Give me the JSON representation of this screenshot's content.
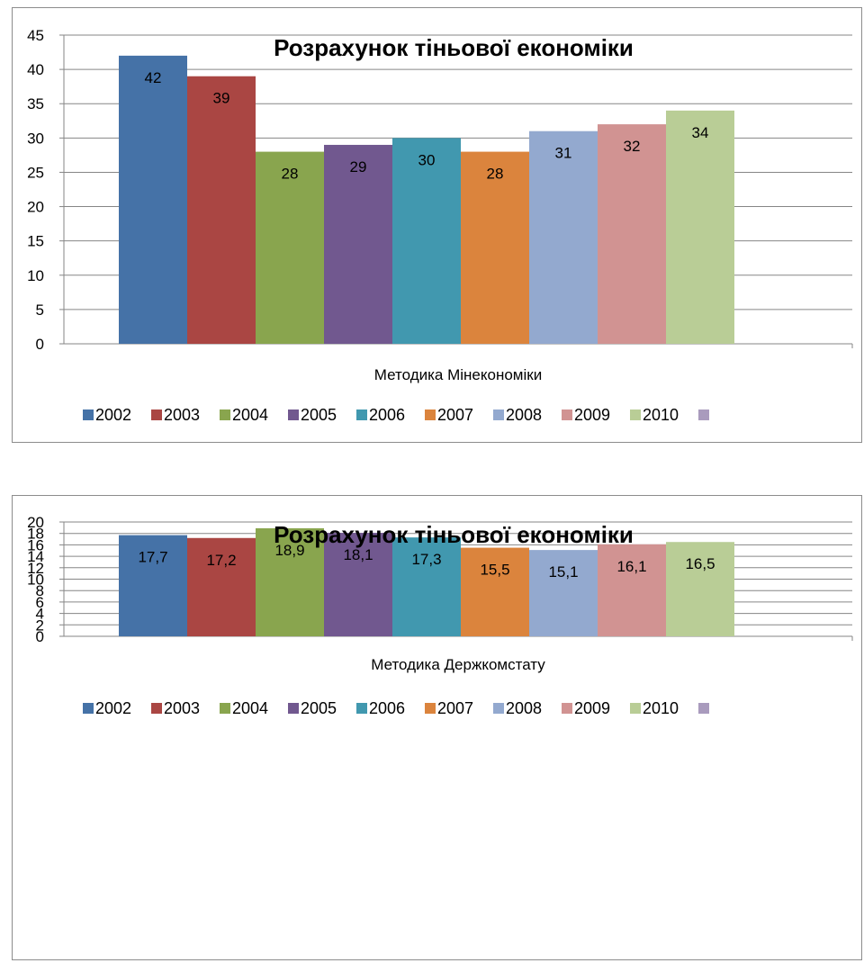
{
  "chart_data": [
    {
      "type": "bar",
      "title": "Розрахунок тіньової економіки",
      "category": "Методика Мінекономіки",
      "xlabel": "",
      "ylabel": "",
      "ylim": [
        0,
        45
      ],
      "ytick_step": 5,
      "yticks": [
        "0",
        "5",
        "10",
        "15",
        "20",
        "25",
        "30",
        "35",
        "40",
        "45"
      ],
      "grid": true,
      "legend_position": "bottom",
      "series": [
        {
          "name": "2002",
          "values": [
            42
          ],
          "label": "42",
          "color": "#4572A7"
        },
        {
          "name": "2003",
          "values": [
            39
          ],
          "label": "39",
          "color": "#AA4643"
        },
        {
          "name": "2004",
          "values": [
            28
          ],
          "label": "28",
          "color": "#89A54E"
        },
        {
          "name": "2005",
          "values": [
            29
          ],
          "label": "29",
          "color": "#71588F"
        },
        {
          "name": "2006",
          "values": [
            30
          ],
          "label": "30",
          "color": "#4198AF"
        },
        {
          "name": "2007",
          "values": [
            28
          ],
          "label": "28",
          "color": "#DB843D"
        },
        {
          "name": "2008",
          "values": [
            31
          ],
          "label": "31",
          "color": "#93A9CF"
        },
        {
          "name": "2009",
          "values": [
            32
          ],
          "label": "32",
          "color": "#D19392"
        },
        {
          "name": "2010",
          "values": [
            34
          ],
          "label": "34",
          "color": "#B9CD96"
        }
      ],
      "legend_extra_color": "#A99BBD"
    },
    {
      "type": "bar",
      "title": "Розрахунок тіньової економіки",
      "category": "Методика Держкомстату",
      "xlabel": "",
      "ylabel": "",
      "ylim": [
        0,
        20
      ],
      "ytick_step": 2,
      "yticks": [
        "0",
        "2",
        "4",
        "6",
        "8",
        "10",
        "12",
        "14",
        "16",
        "18",
        "20"
      ],
      "grid": true,
      "legend_position": "bottom",
      "series": [
        {
          "name": "2002",
          "values": [
            17.7
          ],
          "label": "17,7",
          "color": "#4572A7"
        },
        {
          "name": "2003",
          "values": [
            17.2
          ],
          "label": "17,2",
          "color": "#AA4643"
        },
        {
          "name": "2004",
          "values": [
            18.9
          ],
          "label": "18,9",
          "color": "#89A54E"
        },
        {
          "name": "2005",
          "values": [
            18.1
          ],
          "label": "18,1",
          "color": "#71588F"
        },
        {
          "name": "2006",
          "values": [
            17.3
          ],
          "label": "17,3",
          "color": "#4198AF"
        },
        {
          "name": "2007",
          "values": [
            15.5
          ],
          "label": "15,5",
          "color": "#DB843D"
        },
        {
          "name": "2008",
          "values": [
            15.1
          ],
          "label": "15,1",
          "color": "#93A9CF"
        },
        {
          "name": "2009",
          "values": [
            16.1
          ],
          "label": "16,1",
          "color": "#D19392"
        },
        {
          "name": "2010",
          "values": [
            16.5
          ],
          "label": "16,5",
          "color": "#B9CD96"
        }
      ],
      "legend_extra_color": "#A99BBD"
    }
  ]
}
